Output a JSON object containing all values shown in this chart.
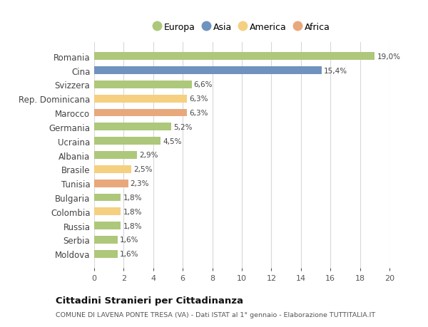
{
  "countries": [
    "Romania",
    "Cina",
    "Svizzera",
    "Rep. Dominicana",
    "Marocco",
    "Germania",
    "Ucraina",
    "Albania",
    "Brasile",
    "Tunisia",
    "Bulgaria",
    "Colombia",
    "Russia",
    "Serbia",
    "Moldova"
  ],
  "values": [
    19.0,
    15.4,
    6.6,
    6.3,
    6.3,
    5.2,
    4.5,
    2.9,
    2.5,
    2.3,
    1.8,
    1.8,
    1.8,
    1.6,
    1.6
  ],
  "labels": [
    "19,0%",
    "15,4%",
    "6,6%",
    "6,3%",
    "6,3%",
    "5,2%",
    "4,5%",
    "2,9%",
    "2,5%",
    "2,3%",
    "1,8%",
    "1,8%",
    "1,8%",
    "1,6%",
    "1,6%"
  ],
  "continents": [
    "Europa",
    "Asia",
    "Europa",
    "America",
    "Africa",
    "Europa",
    "Europa",
    "Europa",
    "America",
    "Africa",
    "Europa",
    "America",
    "Europa",
    "Europa",
    "Europa"
  ],
  "colors": {
    "Europa": "#adc87a",
    "Asia": "#7092be",
    "America": "#f5d080",
    "Africa": "#e8a87c"
  },
  "legend_order": [
    "Europa",
    "Asia",
    "America",
    "Africa"
  ],
  "title": "Cittadini Stranieri per Cittadinanza",
  "subtitle": "COMUNE DI LAVENA PONTE TRESA (VA) - Dati ISTAT al 1° gennaio - Elaborazione TUTTITALIA.IT",
  "xlim": [
    0,
    20
  ],
  "xticks": [
    0,
    2,
    4,
    6,
    8,
    10,
    12,
    14,
    16,
    18,
    20
  ],
  "background_color": "#ffffff",
  "grid_color": "#d8d8d8"
}
